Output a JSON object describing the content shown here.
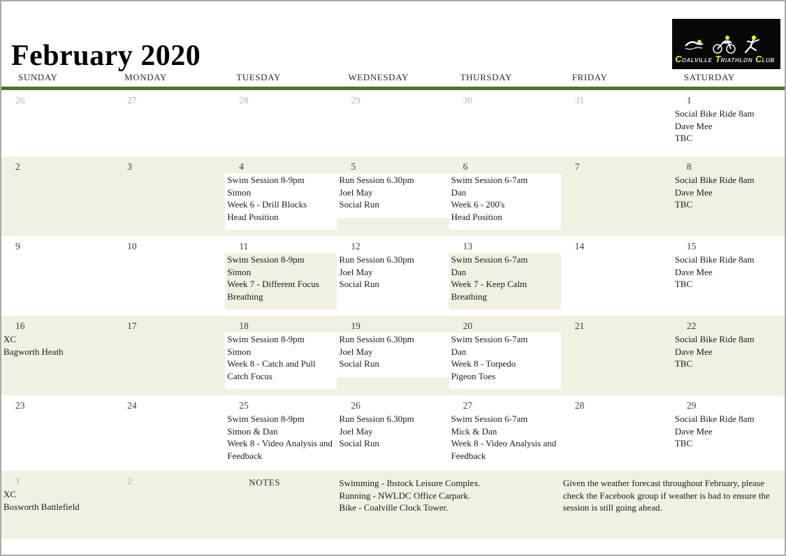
{
  "colors": {
    "accent_green": "#4f7228",
    "row_cream": "#f1f0e2",
    "logo_yellow": "#f2e71c",
    "muted_gray": "#b2b1a6"
  },
  "title": "February 2020",
  "logo": {
    "words": [
      "Coalville",
      "Triathlon",
      "Club"
    ],
    "icons": [
      "swimmer-icon",
      "cyclist-icon",
      "runner-icon"
    ]
  },
  "weekdays": [
    "SUNDAY",
    "MONDAY",
    "TUESDAY",
    "WEDNESDAY",
    "THURSDAY",
    "FRIDAY",
    "SATURDAY"
  ],
  "weeks": [
    {
      "shaded": false,
      "days": [
        {
          "num": "26",
          "muted": true,
          "block": "none",
          "lines": []
        },
        {
          "num": "27",
          "muted": true,
          "block": "none",
          "lines": []
        },
        {
          "num": "28",
          "muted": true,
          "block": "none",
          "lines": []
        },
        {
          "num": "29",
          "muted": true,
          "block": "none",
          "lines": []
        },
        {
          "num": "30",
          "muted": true,
          "block": "none",
          "lines": []
        },
        {
          "num": "31",
          "muted": true,
          "block": "none",
          "lines": []
        },
        {
          "num": "1",
          "muted": false,
          "block": "none",
          "lines": [
            "Social Bike Ride 8am",
            "Dave Mee",
            "TBC"
          ]
        }
      ]
    },
    {
      "shaded": true,
      "days": [
        {
          "num": "2",
          "muted": false,
          "block": "none",
          "lines": []
        },
        {
          "num": "3",
          "muted": false,
          "block": "none",
          "lines": []
        },
        {
          "num": "4",
          "muted": false,
          "block": "white",
          "lines": [
            "Swim Session 8-9pm",
            "Simon",
            "Week 6 - Drill Blocks",
            "Head Position"
          ]
        },
        {
          "num": "5",
          "muted": false,
          "block": "white",
          "lines": [
            "Run Session 6.30pm",
            "Joel May",
            "Social Run"
          ]
        },
        {
          "num": "6",
          "muted": false,
          "block": "white",
          "lines": [
            "Swim Session 6-7am",
            "Dan",
            "Week 6 - 200's",
            "Head Position"
          ]
        },
        {
          "num": "7",
          "muted": false,
          "block": "none",
          "lines": []
        },
        {
          "num": "8",
          "muted": false,
          "block": "none",
          "lines": [
            "Social Bike Ride 8am",
            "Dave Mee",
            "TBC"
          ]
        }
      ]
    },
    {
      "shaded": false,
      "days": [
        {
          "num": "9",
          "muted": false,
          "block": "none",
          "lines": []
        },
        {
          "num": "10",
          "muted": false,
          "block": "none",
          "lines": []
        },
        {
          "num": "11",
          "muted": false,
          "block": "cream",
          "lines": [
            "Swim Session 8-9pm",
            "Simon",
            "Week 7 - Different Focus",
            "Breathing"
          ]
        },
        {
          "num": "12",
          "muted": false,
          "block": "none",
          "lines": [
            "Run Session 6.30pm",
            "Joel May",
            "Social Run"
          ]
        },
        {
          "num": "13",
          "muted": false,
          "block": "cream",
          "lines": [
            "Swim Session 6-7am",
            "Dan",
            "Week 7 - Keep Calm",
            "Breathing"
          ]
        },
        {
          "num": "14",
          "muted": false,
          "block": "none",
          "lines": []
        },
        {
          "num": "15",
          "muted": false,
          "block": "none",
          "lines": [
            "Social Bike Ride 8am",
            "Dave Mee",
            "TBC"
          ]
        }
      ]
    },
    {
      "shaded": true,
      "days": [
        {
          "num": "16",
          "muted": false,
          "block": "none",
          "lines": [
            "XC",
            "Bagworth Heath"
          ]
        },
        {
          "num": "17",
          "muted": false,
          "block": "none",
          "lines": []
        },
        {
          "num": "18",
          "muted": false,
          "block": "white",
          "lines": [
            "Swim Session 8-9pm",
            "Simon",
            "Week 8 - Catch and Pull",
            "Catch Focus"
          ]
        },
        {
          "num": "19",
          "muted": false,
          "block": "white",
          "lines": [
            "Run Session 6.30pm",
            "Joel May",
            "Social Run"
          ]
        },
        {
          "num": "20",
          "muted": false,
          "block": "white",
          "lines": [
            "Swim Session 6-7am",
            "Dan",
            "Week 8 - Torpedo",
            "Pigeon Toes"
          ]
        },
        {
          "num": "21",
          "muted": false,
          "block": "none",
          "lines": []
        },
        {
          "num": "22",
          "muted": false,
          "block": "none",
          "lines": [
            "Social Bike Ride 8am",
            "Dave Mee",
            "TBC"
          ]
        }
      ]
    },
    {
      "shaded": false,
      "days": [
        {
          "num": "23",
          "muted": false,
          "block": "none",
          "lines": []
        },
        {
          "num": "24",
          "muted": false,
          "block": "none",
          "lines": []
        },
        {
          "num": "25",
          "muted": false,
          "block": "none",
          "lines": [
            "Swim Session 8-9pm",
            "Simon & Dan",
            "Week 8 - Video Analysis and Feedback"
          ]
        },
        {
          "num": "26",
          "muted": false,
          "block": "none",
          "lines": [
            "Run Session 6.30pm",
            "Joel May",
            "Social Run"
          ]
        },
        {
          "num": "27",
          "muted": false,
          "block": "none",
          "lines": [
            "Swim Session 6-7am",
            "Mick & Dan",
            "Week 8 - Video Analysis and Feedback"
          ]
        },
        {
          "num": "28",
          "muted": false,
          "block": "none",
          "lines": []
        },
        {
          "num": "29",
          "muted": false,
          "block": "none",
          "lines": [
            "Social Bike Ride 8am",
            "Dave Mee",
            "TBC"
          ]
        }
      ]
    }
  ],
  "footer": {
    "day1": {
      "num": "1",
      "lines": [
        "XC",
        "Bosworth Battlefield"
      ]
    },
    "day2": {
      "num": "2"
    },
    "notes_label": "NOTES",
    "locations": [
      "Swimming - Ibstock Leisure Complex.",
      "Running - NWLDC Office Carpark.",
      "Bike - Coalville Clock Tower."
    ],
    "weather_note": "Given the weather forecast throughout February, please check the Facebook group if weather is bad to ensure the session is still going ahead."
  }
}
